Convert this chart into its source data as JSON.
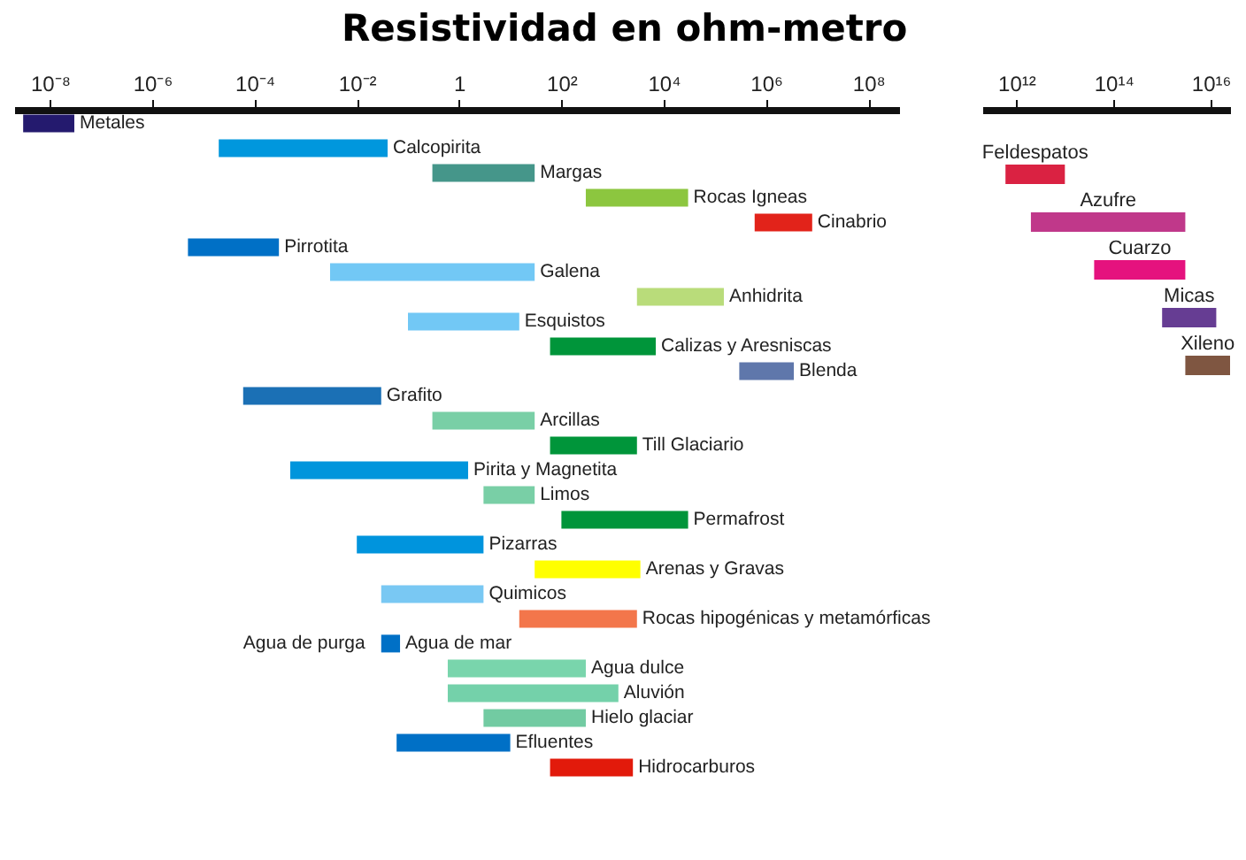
{
  "chart_data": [
    {
      "type": "bar",
      "orientation": "horizontal",
      "log": "x",
      "tick_labels": "x",
      "title": "Resistividad en ohm-metro",
      "categories": [
        "Metales",
        "Calcopirita",
        "Margas",
        "Rocas Igneas",
        "Cinabrio",
        "Pirrotita",
        "Galena",
        "Anhidrita",
        "Esquistos",
        "Calizas y Aresniscas",
        "Blenda",
        "Grafito",
        "Arcillas",
        "Till Glaciario",
        "Pirita y Magnetita",
        "Limos",
        "Permafrost",
        "Pizarras",
        "Arenas y Gravas",
        "Quimicos",
        "Rocas hipogénicas y metamórficas",
        "Agua de mar",
        "Agua dulce",
        "Aluvión",
        "Hielo glaciar",
        "Efluentes",
        "Hidrocarburos"
      ],
      "base": [
        3e-09,
        2e-05,
        0.3,
        300,
        600000,
        5e-06,
        0.003,
        3000,
        0.1,
        60,
        300000,
        6e-05,
        0.3,
        60,
        0.0005,
        3,
        100,
        0.01,
        30,
        0.03,
        15,
        0.03,
        0.6,
        0.6,
        3,
        0.06,
        60
      ],
      "values": [
        2.7e-08,
        0.03998,
        29.7,
        29700,
        7400000,
        0.000295,
        29.997,
        147000,
        14.9,
        6940,
        3200000,
        0.02994,
        29.7,
        2940,
        1.4995,
        27,
        29900,
        2.99,
        3470,
        2.97,
        2985,
        0.04,
        299.4,
        1299.4,
        297,
        9.94,
        2440
      ],
      "colors": [
        "#241a6e",
        "#0097dd",
        "#45968a",
        "#8cc63f",
        "#e2231a",
        "#0070c6",
        "#72c8f5",
        "#b9dc7a",
        "#72c8f5",
        "#00953a",
        "#5f77ab",
        "#1b70b5",
        "#79cfa6",
        "#00953a",
        "#0095dc",
        "#79cfa6",
        "#00953a",
        "#0094dd",
        "#ffff00",
        "#79c8f3",
        "#f3764b",
        "#0070c6",
        "#79d5ac",
        "#74d1aa",
        "#72cba2",
        "#0070c6",
        "#e21a0b"
      ],
      "xlim": [
        2e-09,
        400000000.0
      ],
      "xticks": [
        {
          "value": 1e-08,
          "label": "10⁻⁸"
        },
        {
          "value": 1e-06,
          "label": "10⁻⁶"
        },
        {
          "value": 0.0001,
          "label": "10⁻⁴"
        },
        {
          "value": 0.01,
          "label": "10⁻²"
        },
        1,
        {
          "value": 100,
          "label": "10²"
        },
        {
          "value": 10000,
          "label": "10⁴"
        },
        {
          "value": 1000000,
          "label": "10⁶"
        },
        {
          "value": 100000000,
          "label": "10⁸"
        }
      ],
      "annotations": [
        {
          "text": "Agua  de purga",
          "x": 0.02,
          "y": "Agua de mar"
        }
      ]
    },
    {
      "type": "bar",
      "orientation": "horizontal",
      "log": "x",
      "tick_labels": "x",
      "categories": [
        "Feldespatos",
        "Azufre",
        "Cuarzo",
        "Micas",
        "Xileno"
      ],
      "base": [
        600000000000.0,
        2000000000000.0,
        40000000000000.0,
        1000000000000000.0,
        3000000000000000.0
      ],
      "values": [
        9400000000000.0,
        2998000000000000.0,
        2960000000000000.0,
        1.2e+16,
        2.2e+16
      ],
      "colors": [
        "#da2242",
        "#c0388a",
        "#e5127e",
        "#663d93",
        "#7f5641"
      ],
      "xlim": [
        200000000000.0,
        2.5e+16
      ],
      "xticks": [
        {
          "value": 1000000000000.0,
          "label": "10¹²"
        },
        {
          "value": 100000000000000.0,
          "label": "10¹⁴"
        },
        {
          "value": 1e+16,
          "label": "10¹⁶"
        }
      ]
    }
  ]
}
